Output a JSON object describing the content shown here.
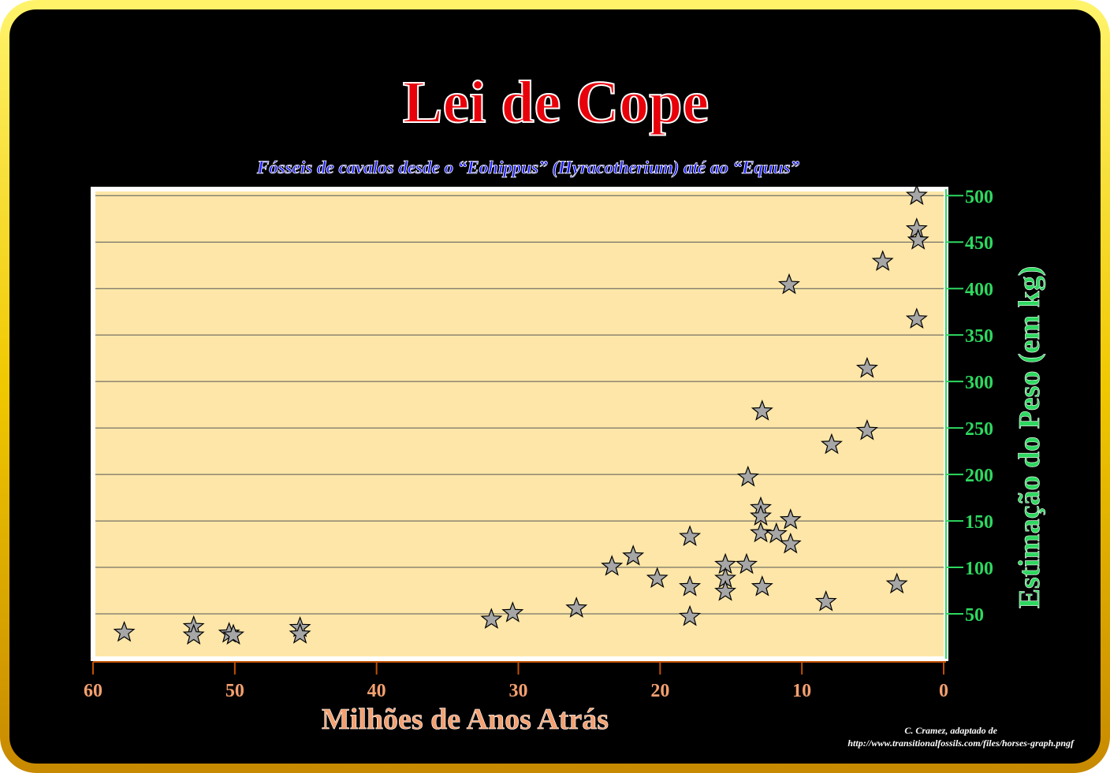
{
  "chart_data": {
    "type": "scatter",
    "title": "Lei de Cope",
    "subtitle": "Fósseis de cavalos desde o “Eohippus” (Hyracotherium) até ao “Equus”",
    "x_label": "Milhões de Anos Atrás",
    "y_label": "Estimação do Peso (em kg)",
    "credit": [
      "C. Cramez, adaptado de",
      "http://www.transitionalfossils.com/files/horses-graph.pngf"
    ],
    "x": [
      57.8,
      52.9,
      52.9,
      50.4,
      50.1,
      45.4,
      45.4,
      31.9,
      30.4,
      25.9,
      23.4,
      21.9,
      20.2,
      17.9,
      17.9,
      17.9,
      15.4,
      15.4,
      15.4,
      13.8,
      13.9,
      12.9,
      12.9,
      12.9,
      12.8,
      12.8,
      11.8,
      10.8,
      10.8,
      10.9,
      8.3,
      7.9,
      5.4,
      5.4,
      4.3,
      3.3,
      1.9,
      1.9,
      1.8,
      1.9
    ],
    "values": [
      30,
      36,
      27,
      29,
      27,
      35,
      28,
      44,
      51,
      56,
      101,
      112,
      88,
      133,
      79,
      47,
      103,
      88,
      74,
      197,
      103,
      164,
      155,
      137,
      79,
      268,
      136,
      151,
      125,
      404,
      63,
      232,
      314,
      247,
      429,
      82,
      500,
      464,
      452,
      367
    ],
    "color": "#a6a6a6",
    "xlim": [
      60,
      0
    ],
    "ylim": [
      0,
      507
    ],
    "xticks": [
      60,
      50,
      40,
      30,
      20,
      10,
      0
    ],
    "yticks": [
      50,
      100,
      150,
      200,
      250,
      300,
      350,
      400,
      450,
      500
    ],
    "grid": true
  }
}
